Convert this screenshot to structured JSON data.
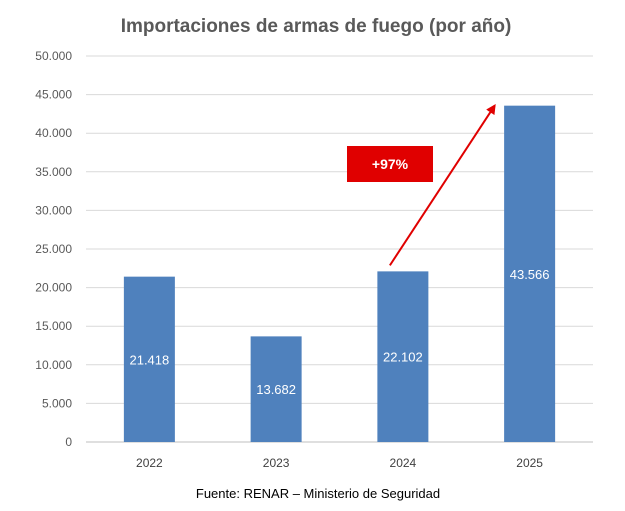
{
  "chart_data": {
    "type": "bar",
    "title": "Importaciones de armas de fuego  (por año)",
    "categories": [
      "2022",
      "2023",
      "2024",
      "2025"
    ],
    "values": [
      21418,
      13682,
      22102,
      43566
    ],
    "data_labels": [
      "21.418",
      "13.682",
      "22.102",
      "43.566"
    ],
    "xlabel": "",
    "ylabel": "",
    "ylim": [
      0,
      50000
    ],
    "yticks": [
      0,
      5000,
      10000,
      15000,
      20000,
      25000,
      30000,
      35000,
      40000,
      45000,
      50000
    ],
    "ytick_labels": [
      "0",
      "5.000",
      "10.000",
      "15.000",
      "20.000",
      "25.000",
      "30.000",
      "35.000",
      "40.000",
      "45.000",
      "50.000"
    ],
    "grid": true,
    "legend": "none",
    "annotation": {
      "text": "+97%",
      "from_category": "2024",
      "to_category": "2025",
      "color": "#e00000"
    },
    "source": "Fuente: RENAR – Ministerio de Seguridad"
  },
  "colors": {
    "bar": "#4f81bd",
    "grid": "#d9d9d9",
    "axis": "#bfbfbf",
    "annotation": "#e00000"
  }
}
